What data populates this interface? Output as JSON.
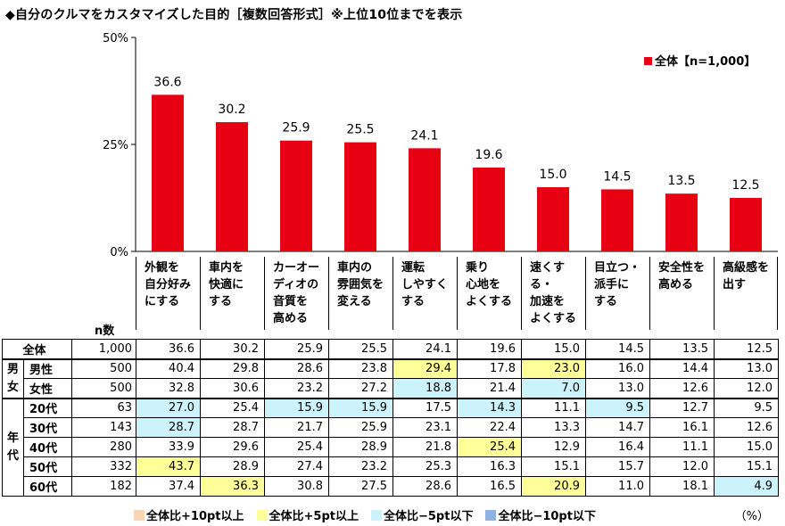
{
  "title": "◆自分のクルマをカスタマイズした目的［複数回答形式］※上位10位までを表示",
  "chart_data": {
    "type": "bar",
    "title": "◆自分のクルマをカスタマイズした目的［複数回答形式］※上位10位までを表示",
    "categories": [
      "外観を\n自分好み\nにする",
      "車内を\n快適に\nする",
      "カーオー\nディオの\n音質を\n高める",
      "車内の\n雰囲気を\n変える",
      "運転\nしやすく\nする",
      "乗り\n心地を\nよくする",
      "速くする・\n加速を\nよくする",
      "目立つ・\n派手に\nする",
      "安全性を\n高める",
      "高級感を\n出す"
    ],
    "series": [
      {
        "name": "全体【n=1,000】",
        "color": "#e60012",
        "values": [
          36.6,
          30.2,
          25.9,
          25.5,
          24.1,
          19.6,
          15.0,
          14.5,
          13.5,
          12.5
        ],
        "labels": [
          "36.6",
          "30.2",
          "25.9",
          "25.5",
          "24.1",
          "19.6",
          "15.0",
          "14.5",
          "13.5",
          "12.5"
        ]
      }
    ],
    "ylim": [
      0,
      50
    ],
    "yticks": [
      0,
      25,
      50
    ],
    "ytick_labels": [
      "0%",
      "25%",
      "50%"
    ],
    "legend": "top-right",
    "xlabel": "",
    "ylabel": ""
  },
  "table": {
    "n_header": "n数",
    "unit": "（%）",
    "rows": [
      {
        "group": "",
        "label": "全体",
        "n": "1,000",
        "values": [
          "36.6",
          "30.2",
          "25.9",
          "25.5",
          "24.1",
          "19.6",
          "15.0",
          "14.5",
          "13.5",
          "12.5"
        ],
        "hl": [
          "",
          "",
          "",
          "",
          "",
          "",
          "",
          "",
          "",
          ""
        ]
      },
      {
        "group": "男女",
        "label": "男性",
        "n": "500",
        "values": [
          "40.4",
          "29.8",
          "28.6",
          "23.8",
          "29.4",
          "17.8",
          "23.0",
          "16.0",
          "14.4",
          "13.0"
        ],
        "hl": [
          "",
          "",
          "",
          "",
          "yellow",
          "",
          "yellow",
          "",
          "",
          ""
        ]
      },
      {
        "group": "男女",
        "label": "女性",
        "n": "500",
        "values": [
          "32.8",
          "30.6",
          "23.2",
          "27.2",
          "18.8",
          "21.4",
          "7.0",
          "13.0",
          "12.6",
          "12.0"
        ],
        "hl": [
          "",
          "",
          "",
          "",
          "lightblue",
          "",
          "lightblue",
          "",
          "",
          ""
        ]
      },
      {
        "group": "年代",
        "label": "20代",
        "n": "63",
        "values": [
          "27.0",
          "25.4",
          "15.9",
          "15.9",
          "17.5",
          "14.3",
          "11.1",
          "9.5",
          "12.7",
          "9.5"
        ],
        "hl": [
          "lightblue",
          "",
          "lightblue",
          "lightblue",
          "",
          "lightblue",
          "",
          "lightblue",
          "",
          ""
        ]
      },
      {
        "group": "年代",
        "label": "30代",
        "n": "143",
        "values": [
          "28.7",
          "28.7",
          "21.7",
          "25.9",
          "23.1",
          "22.4",
          "13.3",
          "14.7",
          "16.1",
          "12.6"
        ],
        "hl": [
          "lightblue",
          "",
          "",
          "",
          "",
          "",
          "",
          "",
          "",
          ""
        ]
      },
      {
        "group": "年代",
        "label": "40代",
        "n": "280",
        "values": [
          "33.9",
          "29.6",
          "25.4",
          "28.9",
          "21.8",
          "25.4",
          "12.9",
          "16.4",
          "11.1",
          "15.0"
        ],
        "hl": [
          "",
          "",
          "",
          "",
          "",
          "yellow",
          "",
          "",
          "",
          ""
        ]
      },
      {
        "group": "年代",
        "label": "50代",
        "n": "332",
        "values": [
          "43.7",
          "28.9",
          "27.4",
          "23.2",
          "25.3",
          "16.3",
          "15.1",
          "15.7",
          "12.0",
          "15.1"
        ],
        "hl": [
          "yellow",
          "",
          "",
          "",
          "",
          "",
          "",
          "",
          "",
          ""
        ]
      },
      {
        "group": "年代",
        "label": "60代",
        "n": "182",
        "values": [
          "37.4",
          "36.3",
          "30.8",
          "27.5",
          "28.6",
          "16.5",
          "20.9",
          "11.0",
          "18.1",
          "4.9"
        ],
        "hl": [
          "",
          "yellow",
          "",
          "",
          "",
          "",
          "yellow",
          "",
          "",
          "lightblue"
        ]
      }
    ],
    "group_labels": {
      "gender": "男\n女",
      "age": "年\n代"
    }
  },
  "legend_bottom": [
    {
      "label": "全体比+10pt以上",
      "color": "#fbd4b4"
    },
    {
      "label": "全体比+5pt以上",
      "color": "#ffff99"
    },
    {
      "label": "全体比−5pt以下",
      "color": "#ccf2fb"
    },
    {
      "label": "全体比−10pt以下",
      "color": "#8db3e2"
    }
  ]
}
